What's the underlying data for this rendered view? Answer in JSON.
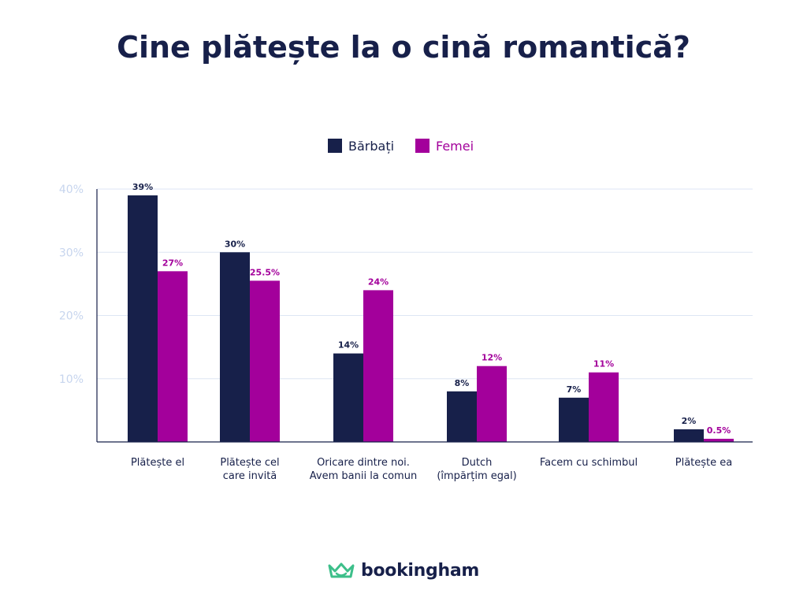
{
  "brand": {
    "name": "bookingham",
    "color_text": "#17204a",
    "color_icon": "#3dbf8a"
  },
  "colors": {
    "men": "#17204a",
    "women": "#a3009b",
    "grid": "#dde6f4",
    "tick": "#c7d5ee",
    "axis": "#17204a"
  },
  "chart_data": {
    "type": "bar",
    "title": "Cine plătește la o cină romantică?",
    "xlabel": "",
    "ylabel": "",
    "ylim": [
      0,
      40
    ],
    "yticks": [
      10,
      20,
      30,
      40
    ],
    "ytick_labels": [
      "10%",
      "20%",
      "30%",
      "40%"
    ],
    "grid": true,
    "legend_position": "top-center",
    "categories": [
      [
        "Plătește el"
      ],
      [
        "Plătește cel",
        "care invită"
      ],
      [
        "Oricare dintre noi.",
        "Avem banii la comun"
      ],
      [
        "Dutch",
        "(împărțim egal)"
      ],
      [
        "Facem cu schimbul"
      ],
      [
        "Plătește ea"
      ]
    ],
    "series": [
      {
        "name": "Bărbați",
        "color": "#17204a",
        "values": [
          39,
          30,
          14,
          8,
          7,
          2
        ],
        "labels": [
          "39%",
          "30%",
          "14%",
          "8%",
          "7%",
          "2%"
        ]
      },
      {
        "name": "Femei",
        "color": "#a3009b",
        "values": [
          27,
          25.5,
          24,
          12,
          11,
          0.5
        ],
        "labels": [
          "27%",
          "25.5%",
          "24%",
          "12%",
          "11%",
          "0.5%"
        ]
      }
    ]
  }
}
